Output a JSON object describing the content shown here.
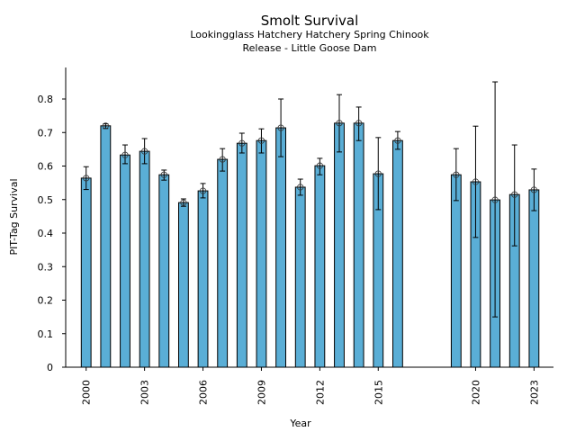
{
  "chart_data": {
    "type": "bar",
    "title": "Smolt Survival",
    "subtitle_lines": [
      "Lookingglass Hatchery Hatchery Spring Chinook",
      "Release - Little Goose Dam"
    ],
    "xlabel": "Year",
    "ylabel": "PIT-Tag Survival",
    "xlim": [
      1998.95,
      2024.0
    ],
    "ylim": [
      0,
      0.894
    ],
    "x_ticks": [
      2000,
      2003,
      2006,
      2009,
      2012,
      2015,
      2020,
      2023
    ],
    "x_tick_labels": [
      "2000",
      "2003",
      "2006",
      "2009",
      "2012",
      "2015",
      "2020",
      "2023"
    ],
    "y_ticks": [
      0,
      0.1,
      0.2,
      0.3,
      0.4,
      0.5,
      0.6,
      0.7,
      0.8
    ],
    "y_tick_labels": [
      "0",
      "0.1",
      "0.2",
      "0.3",
      "0.4",
      "0.5",
      "0.6",
      "0.7",
      "0.8"
    ],
    "bar_width_years": 0.5,
    "bar_color": "#5aaed6",
    "edge_color": "#000000",
    "grid": false,
    "legend": "none",
    "series": [
      {
        "name": "PIT-Tag Survival",
        "points": [
          {
            "year": 2000,
            "value": 0.564,
            "lower": 0.53,
            "upper": 0.598
          },
          {
            "year": 2001,
            "value": 0.72,
            "lower": 0.712,
            "upper": 0.726
          },
          {
            "year": 2002,
            "value": 0.633,
            "lower": 0.607,
            "upper": 0.663
          },
          {
            "year": 2003,
            "value": 0.644,
            "lower": 0.607,
            "upper": 0.682
          },
          {
            "year": 2004,
            "value": 0.574,
            "lower": 0.558,
            "upper": 0.588
          },
          {
            "year": 2005,
            "value": 0.491,
            "lower": 0.48,
            "upper": 0.502
          },
          {
            "year": 2006,
            "value": 0.526,
            "lower": 0.505,
            "upper": 0.548
          },
          {
            "year": 2007,
            "value": 0.62,
            "lower": 0.585,
            "upper": 0.652
          },
          {
            "year": 2008,
            "value": 0.668,
            "lower": 0.639,
            "upper": 0.698
          },
          {
            "year": 2009,
            "value": 0.676,
            "lower": 0.639,
            "upper": 0.711
          },
          {
            "year": 2010,
            "value": 0.714,
            "lower": 0.628,
            "upper": 0.8
          },
          {
            "year": 2011,
            "value": 0.537,
            "lower": 0.513,
            "upper": 0.561
          },
          {
            "year": 2012,
            "value": 0.601,
            "lower": 0.574,
            "upper": 0.623
          },
          {
            "year": 2013,
            "value": 0.728,
            "lower": 0.642,
            "upper": 0.813
          },
          {
            "year": 2014,
            "value": 0.728,
            "lower": 0.676,
            "upper": 0.776
          },
          {
            "year": 2015,
            "value": 0.577,
            "lower": 0.47,
            "upper": 0.685
          },
          {
            "year": 2016,
            "value": 0.676,
            "lower": 0.65,
            "upper": 0.703
          },
          {
            "year": 2019,
            "value": 0.574,
            "lower": 0.497,
            "upper": 0.652
          },
          {
            "year": 2020,
            "value": 0.553,
            "lower": 0.387,
            "upper": 0.719
          },
          {
            "year": 2021,
            "value": 0.499,
            "lower": 0.15,
            "upper": 0.851
          },
          {
            "year": 2022,
            "value": 0.515,
            "lower": 0.362,
            "upper": 0.663
          },
          {
            "year": 2023,
            "value": 0.529,
            "lower": 0.467,
            "upper": 0.591
          }
        ]
      }
    ]
  }
}
